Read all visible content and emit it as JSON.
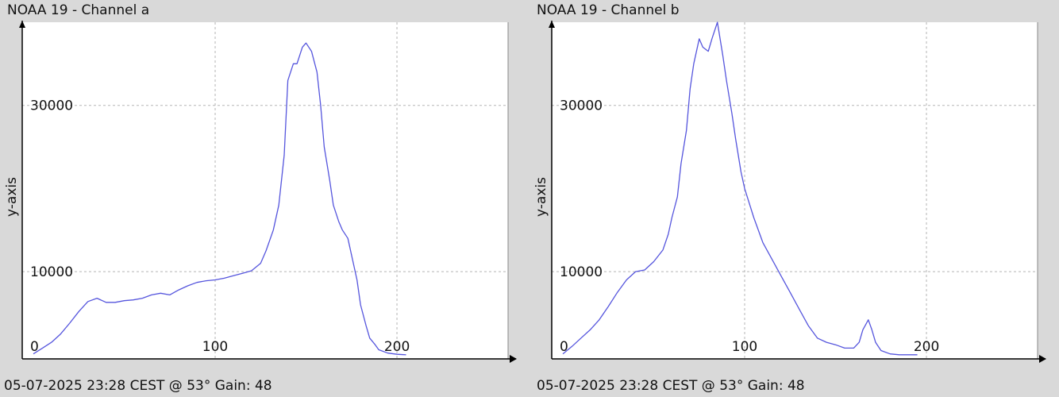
{
  "charts": {
    "a": {
      "title": "NOAA 19 - Channel a",
      "footer": "05-07-2025 23:28 CEST @ 53° Gain: 48"
    },
    "b": {
      "title": "NOAA 19 - Channel b",
      "footer": "05-07-2025 23:28 CEST @ 53° Gain: 48"
    }
  },
  "colors": {
    "background": "#d9d9d9",
    "plot_bg": "#ffffff",
    "line": "#5555dd",
    "grid": "#b5b5b5",
    "axis": "#000000"
  },
  "chart_data": [
    {
      "type": "line",
      "title": "NOAA 19 - Channel a",
      "xlabel": "",
      "ylabel": "y-axis",
      "xlim": [
        0,
        255
      ],
      "ylim": [
        -500,
        40000
      ],
      "xticks": [
        0,
        100,
        200
      ],
      "yticks": [
        10000,
        30000
      ],
      "grid": true,
      "series": [
        {
          "x": [
            0,
            5,
            10,
            15,
            20,
            25,
            30,
            35,
            40,
            45,
            50,
            55,
            60,
            65,
            70,
            75,
            80,
            85,
            90,
            95,
            100,
            105,
            110,
            115,
            120,
            125,
            128,
            132,
            135,
            138,
            140,
            143,
            145,
            148,
            150,
            153,
            156,
            158,
            160,
            163,
            165,
            168,
            170,
            173,
            175,
            178,
            180,
            183,
            185,
            188,
            190,
            195,
            200,
            205
          ],
          "values": [
            100,
            800,
            1500,
            2500,
            3800,
            5200,
            6400,
            6800,
            6300,
            6300,
            6500,
            6600,
            6800,
            7200,
            7400,
            7200,
            7800,
            8300,
            8700,
            8900,
            9000,
            9200,
            9500,
            9800,
            10100,
            11000,
            12500,
            15000,
            18000,
            24000,
            33000,
            35000,
            35000,
            37000,
            37500,
            36500,
            34000,
            30000,
            25000,
            21000,
            18000,
            16000,
            15000,
            14000,
            12000,
            9000,
            6000,
            3500,
            2000,
            1200,
            600,
            200,
            50,
            0
          ]
        }
      ]
    },
    {
      "type": "line",
      "title": "NOAA 19 - Channel b",
      "xlabel": "",
      "ylabel": "y-axis",
      "xlim": [
        0,
        255
      ],
      "ylim": [
        -500,
        40000
      ],
      "xticks": [
        0,
        100,
        200
      ],
      "yticks": [
        10000,
        30000
      ],
      "grid": true,
      "series": [
        {
          "x": [
            0,
            5,
            10,
            15,
            20,
            25,
            30,
            35,
            40,
            45,
            50,
            55,
            58,
            60,
            63,
            65,
            68,
            70,
            72,
            75,
            77,
            80,
            82,
            85,
            88,
            90,
            93,
            95,
            98,
            100,
            105,
            110,
            115,
            120,
            125,
            130,
            135,
            140,
            145,
            150,
            155,
            160,
            163,
            165,
            168,
            170,
            172,
            175,
            180,
            185,
            190,
            195
          ],
          "values": [
            100,
            1000,
            2000,
            3000,
            4200,
            5800,
            7500,
            9000,
            10000,
            10200,
            11200,
            12600,
            14500,
            16500,
            19000,
            23000,
            27000,
            32000,
            35000,
            38000,
            37000,
            36500,
            38000,
            40000,
            36000,
            33000,
            29000,
            26000,
            22000,
            20000,
            16500,
            13500,
            11500,
            9500,
            7500,
            5500,
            3500,
            2000,
            1500,
            1200,
            800,
            800,
            1500,
            3000,
            4200,
            3000,
            1500,
            500,
            100,
            0,
            0,
            0
          ]
        }
      ]
    }
  ]
}
